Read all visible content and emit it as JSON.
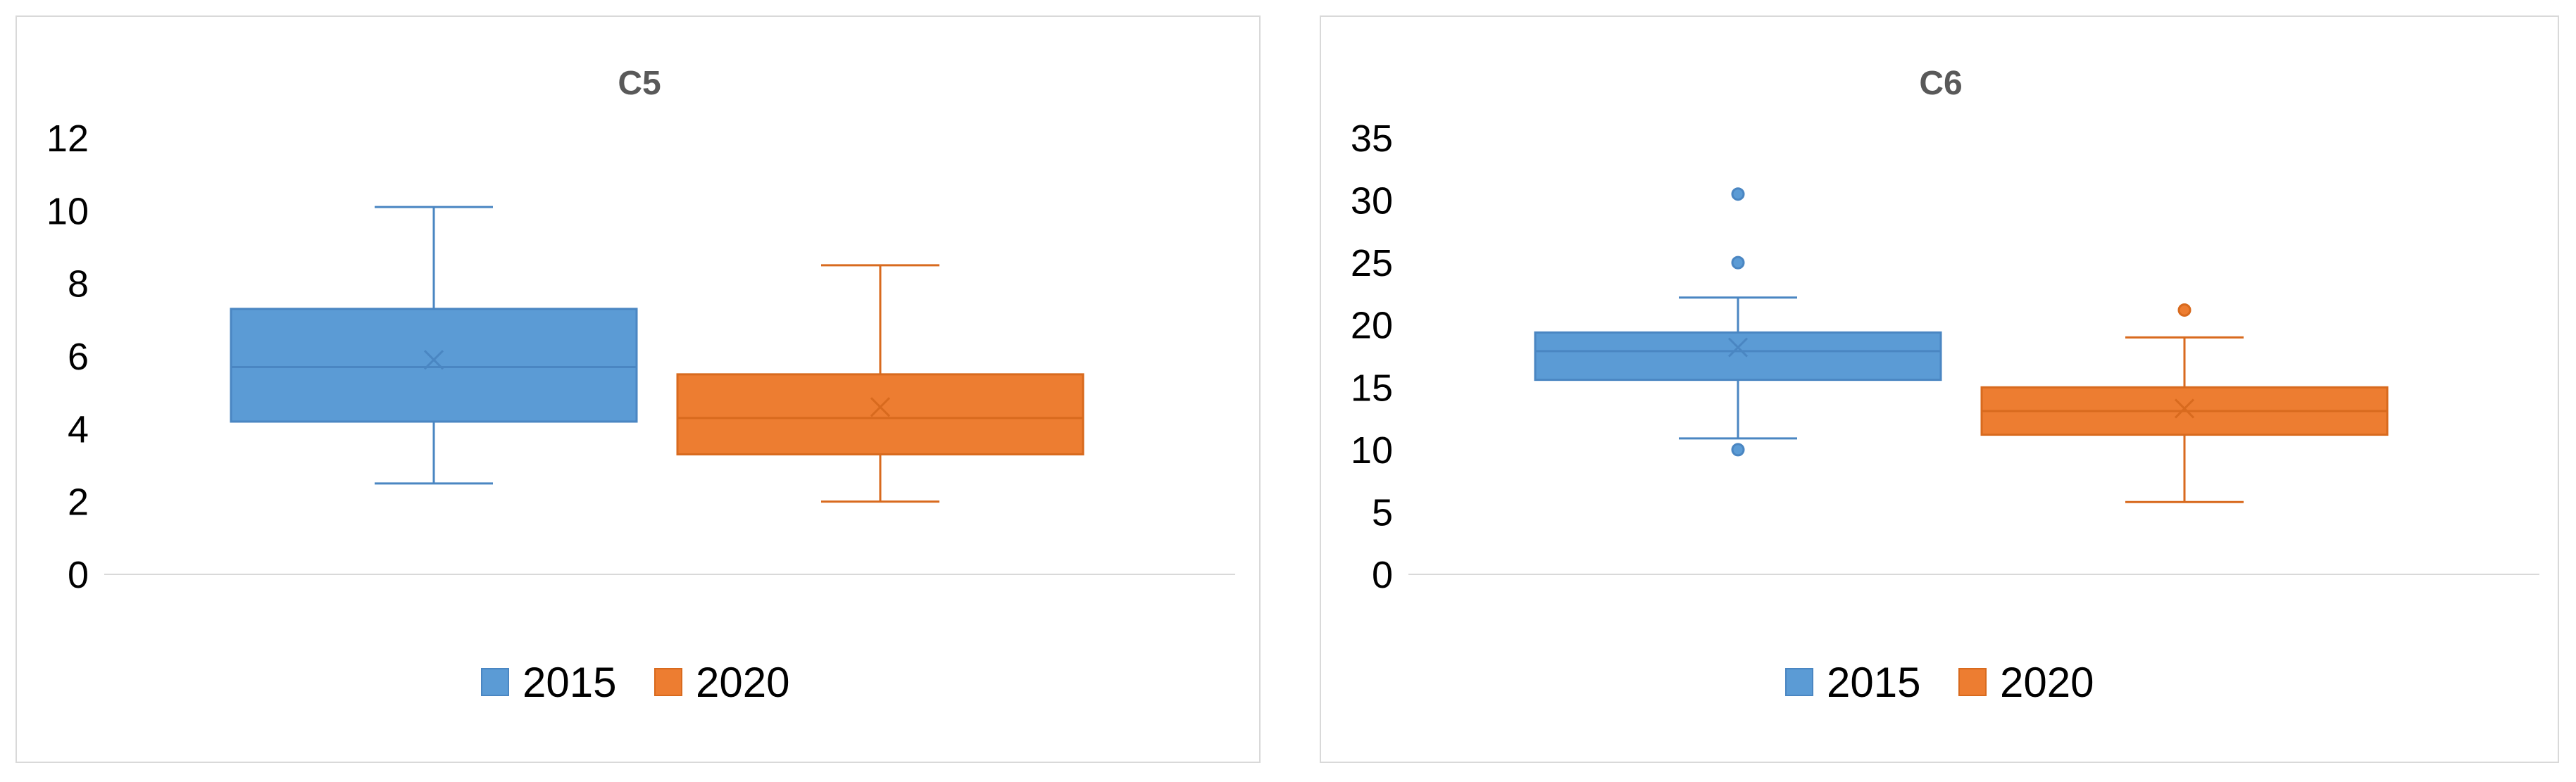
{
  "chart_data": [
    {
      "type": "box",
      "title": "C5",
      "xlabel": "",
      "ylabel": "",
      "ylim": [
        0,
        12
      ],
      "yticks": [
        0,
        2,
        4,
        6,
        8,
        10,
        12
      ],
      "grid": false,
      "legend_position": "bottom",
      "series": [
        {
          "name": "2015",
          "color": "#5B9BD5",
          "edge": "#4A86C2",
          "min": 2.5,
          "q1": 4.2,
          "median": 5.7,
          "q3": 7.3,
          "max": 10.1,
          "mean": 5.9,
          "outliers": []
        },
        {
          "name": "2020",
          "color": "#ED7D31",
          "edge": "#D86A1E",
          "min": 2.0,
          "q1": 3.3,
          "median": 4.3,
          "q3": 5.5,
          "max": 8.5,
          "mean": 4.6,
          "outliers": []
        }
      ]
    },
    {
      "type": "box",
      "title": "C6",
      "xlabel": "",
      "ylabel": "",
      "ylim": [
        0,
        35
      ],
      "yticks": [
        0,
        5,
        10,
        15,
        20,
        25,
        30,
        35
      ],
      "grid": false,
      "legend_position": "bottom",
      "series": [
        {
          "name": "2015",
          "color": "#5B9BD5",
          "edge": "#4A86C2",
          "min": 10.9,
          "q1": 15.6,
          "median": 17.9,
          "q3": 19.4,
          "max": 22.2,
          "mean": 18.2,
          "outliers": [
            10.0,
            25.0,
            30.5
          ]
        },
        {
          "name": "2020",
          "color": "#ED7D31",
          "edge": "#D86A1E",
          "min": 5.8,
          "q1": 11.2,
          "median": 13.1,
          "q3": 15.0,
          "max": 19.0,
          "mean": 13.3,
          "outliers": [
            21.2
          ]
        }
      ]
    }
  ]
}
